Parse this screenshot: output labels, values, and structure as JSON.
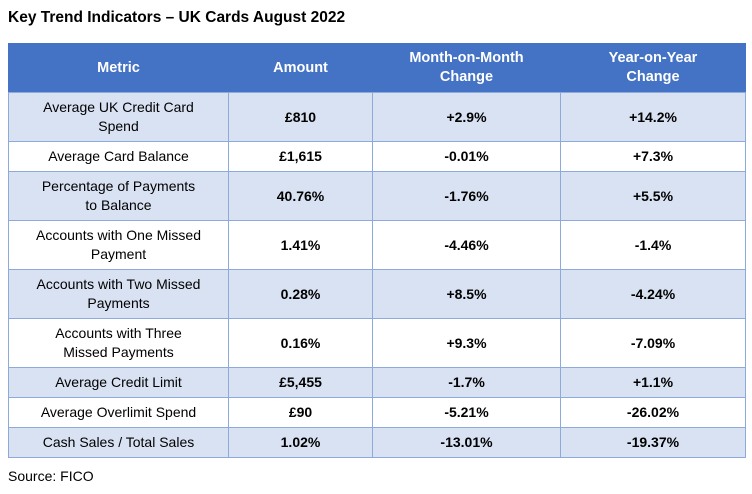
{
  "title": "Key Trend Indicators – UK Cards August 2022",
  "source": "Source: FICO",
  "colors": {
    "header_bg": "#4472C4",
    "header_text": "#FFFFFF",
    "row_alt_bg": "#D9E2F3",
    "row_bg": "#FFFFFF",
    "border": "#8EAADB",
    "text": "#000000"
  },
  "chart_data": {
    "type": "table",
    "title": "Key Trend Indicators – UK Cards August 2022",
    "columns": [
      "Metric",
      "Amount",
      "Month-on-Month Change",
      "Year-on-Year Change"
    ],
    "rows": [
      {
        "metric": "Average UK Credit Card Spend",
        "amount": "£810",
        "mom": "+2.9%",
        "yoy": "+14.2%"
      },
      {
        "metric": "Average Card Balance",
        "amount": "£1,615",
        "mom": "-0.01%",
        "yoy": "+7.3%"
      },
      {
        "metric": "Percentage of Payments to Balance",
        "amount": "40.76%",
        "mom": "-1.76%",
        "yoy": "+5.5%"
      },
      {
        "metric": "Accounts with One Missed Payment",
        "amount": "1.41%",
        "mom": "-4.46%",
        "yoy": "-1.4%"
      },
      {
        "metric": "Accounts with Two Missed Payments",
        "amount": "0.28%",
        "mom": "+8.5%",
        "yoy": "-4.24%"
      },
      {
        "metric": "Accounts with Three Missed Payments",
        "amount": "0.16%",
        "mom": "+9.3%",
        "yoy": "-7.09%"
      },
      {
        "metric": "Average Credit Limit",
        "amount": "£5,455",
        "mom": "-1.7%",
        "yoy": "+1.1%"
      },
      {
        "metric": "Average Overlimit Spend",
        "amount": "£90",
        "mom": "-5.21%",
        "yoy": "-26.02%"
      },
      {
        "metric": "Cash Sales / Total Sales",
        "amount": "1.02%",
        "mom": "-13.01%",
        "yoy": "-19.37%"
      }
    ],
    "source": "Source: FICO",
    "layout": {
      "alternating_row_shading": true,
      "header_position": "top"
    }
  }
}
